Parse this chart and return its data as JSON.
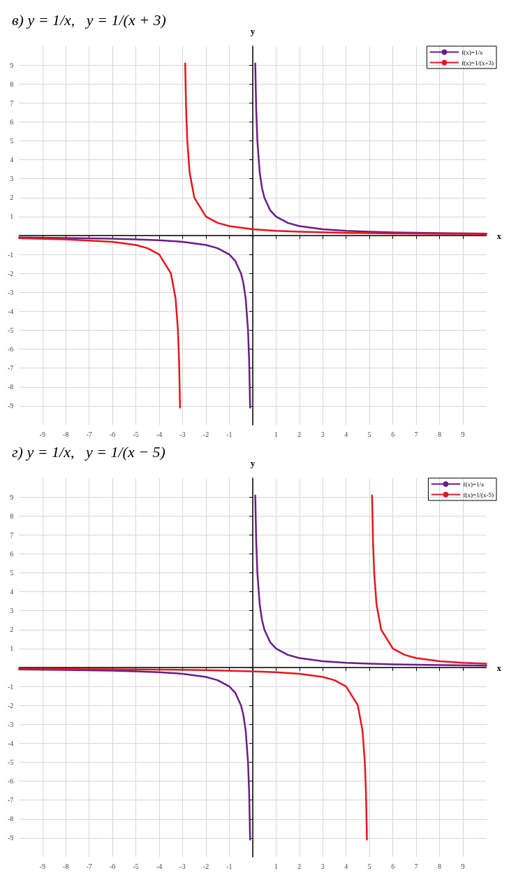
{
  "chart_data": [
    {
      "type": "line",
      "title": "в) y = 1/x,   y = 1/(x + 3)",
      "xlabel": "x",
      "ylabel": "y",
      "xlim": [
        -10,
        10
      ],
      "ylim": [
        -10,
        10
      ],
      "xticks": [
        -9,
        -8,
        -7,
        -6,
        -5,
        -4,
        -3,
        -2,
        -1,
        {
          "value": 0,
          "label": null
        },
        1,
        2,
        3,
        4,
        5,
        6,
        7,
        8,
        9
      ],
      "yticks": [
        -9,
        -8,
        -7,
        -6,
        -5,
        -4,
        -3,
        -2,
        -1,
        {
          "value": 0,
          "label": null
        },
        1,
        2,
        3,
        4,
        5,
        6,
        7,
        8,
        9
      ],
      "grid": true,
      "legend": "top right",
      "marker": "none",
      "line_style": "solid",
      "series": [
        {
          "name": "f(x)=1/x",
          "color": "#6a1b8a",
          "x": [
            -10,
            -8,
            -6,
            -5,
            -4,
            -3,
            -2,
            -1.5,
            -1,
            -0.75,
            -0.5,
            -0.4,
            -0.3,
            -0.2,
            -0.15,
            -0.11,
            0,
            0.11,
            0.15,
            0.2,
            0.3,
            0.4,
            0.5,
            0.75,
            1,
            1.5,
            2,
            3,
            4,
            5,
            6,
            8,
            10
          ],
          "values": [
            -0.1,
            -0.13,
            -0.17,
            -0.2,
            -0.25,
            -0.33,
            -0.5,
            -0.67,
            -1,
            -1.33,
            -2,
            -2.5,
            -3.33,
            -5,
            -6.67,
            -9.09,
            null,
            9.09,
            6.67,
            5,
            3.33,
            2.5,
            2,
            1.33,
            1,
            0.67,
            0.5,
            0.33,
            0.25,
            0.2,
            0.17,
            0.13,
            0.1
          ]
        },
        {
          "name": "f(x)=1/(x+3)",
          "color": "#e8141c",
          "x": [
            -10,
            -8,
            -6,
            -5,
            -4.5,
            -4,
            -3.5,
            -3.3,
            -3.2,
            -3.15,
            -3.11,
            -3,
            -2.89,
            -2.85,
            -2.8,
            -2.7,
            -2.5,
            -2,
            -1.5,
            -1,
            0,
            1,
            2,
            4,
            6,
            8,
            10
          ],
          "values": [
            -0.14,
            -0.2,
            -0.33,
            -0.5,
            -0.67,
            -1,
            -2,
            -3.33,
            -5,
            -6.67,
            -9.09,
            null,
            9.09,
            6.67,
            5,
            3.33,
            2,
            1,
            0.67,
            0.5,
            0.33,
            0.25,
            0.2,
            0.14,
            0.11,
            0.09,
            0.08
          ]
        }
      ]
    },
    {
      "type": "line",
      "title": "г) y = 1/x,   y = 1/(x − 5)",
      "xlabel": "x",
      "ylabel": "y",
      "xlim": [
        -10,
        10
      ],
      "ylim": [
        -10,
        10
      ],
      "xticks": [
        -9,
        -8,
        -7,
        -6,
        -5,
        -4,
        -3,
        -2,
        -1,
        {
          "value": 0,
          "label": null
        },
        1,
        2,
        3,
        4,
        5,
        6,
        7,
        8,
        9
      ],
      "yticks": [
        -9,
        -8,
        -7,
        -6,
        -5,
        -4,
        -3,
        -2,
        -1,
        {
          "value": 0,
          "label": null
        },
        1,
        2,
        3,
        4,
        5,
        6,
        7,
        8,
        9
      ],
      "grid": true,
      "legend": "top right",
      "marker": "none",
      "line_style": "solid",
      "series": [
        {
          "name": "f(x)=1/x",
          "color": "#6a1b8a",
          "x": [
            -10,
            -8,
            -6,
            -5,
            -4,
            -3,
            -2,
            -1.5,
            -1,
            -0.75,
            -0.5,
            -0.4,
            -0.3,
            -0.2,
            -0.15,
            -0.11,
            0,
            0.11,
            0.15,
            0.2,
            0.3,
            0.4,
            0.5,
            0.75,
            1,
            1.5,
            2,
            3,
            4,
            5,
            6,
            8,
            10
          ],
          "values": [
            -0.1,
            -0.13,
            -0.17,
            -0.2,
            -0.25,
            -0.33,
            -0.5,
            -0.67,
            -1,
            -1.33,
            -2,
            -2.5,
            -3.33,
            -5,
            -6.67,
            -9.09,
            null,
            9.09,
            6.67,
            5,
            3.33,
            2.5,
            2,
            1.33,
            1,
            0.67,
            0.5,
            0.33,
            0.25,
            0.2,
            0.17,
            0.13,
            0.1
          ]
        },
        {
          "name": "f(x)=1/(x-5)",
          "color": "#e8141c",
          "x": [
            -10,
            -6,
            -4,
            -2,
            0,
            1,
            2,
            3,
            3.5,
            4,
            4.5,
            4.7,
            4.8,
            4.85,
            4.89,
            5,
            5.11,
            5.15,
            5.2,
            5.3,
            5.5,
            6,
            6.5,
            7,
            8,
            9,
            10
          ],
          "values": [
            -0.07,
            -0.09,
            -0.11,
            -0.14,
            -0.2,
            -0.25,
            -0.33,
            -0.5,
            -0.67,
            -1,
            -2,
            -3.33,
            -5,
            -6.67,
            -9.09,
            null,
            9.09,
            6.67,
            5,
            3.33,
            2,
            1,
            0.67,
            0.5,
            0.33,
            0.25,
            0.2
          ]
        }
      ]
    }
  ]
}
